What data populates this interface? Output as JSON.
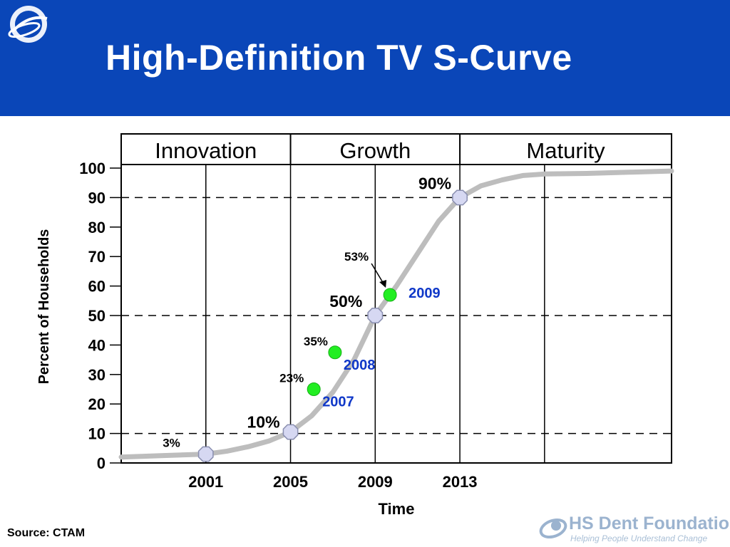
{
  "slide": {
    "title": "High-Definition TV S-Curve",
    "source": "Source: CTAM",
    "logo_text": "HS Dent Foundation",
    "logo_tagline": "Helping People Understand Change",
    "colors": {
      "header_bg": "#0a46b8",
      "curve": "#bdbdbd",
      "marker_highlight": "#22ee22",
      "marker_milestone": "#d6d8f2",
      "year_label": "#1038c8"
    }
  },
  "chart_data": {
    "type": "line",
    "title": "",
    "xlabel": "Time",
    "ylabel": "Percent of Households",
    "ylim": [
      0,
      100
    ],
    "xlim": [
      1997,
      2023
    ],
    "yticks": [
      0,
      10,
      20,
      30,
      40,
      50,
      60,
      70,
      80,
      90,
      100
    ],
    "xticks": [
      "2001",
      "2005",
      "2009",
      "2013"
    ],
    "grid": "dashed horizontal lines at 10, 50 and 90; vertical lines at each year tick and 2017",
    "phases": [
      {
        "label": "Innovation",
        "from": 1997,
        "to": 2005
      },
      {
        "label": "Growth",
        "from": 2005,
        "to": 2013
      },
      {
        "label": "Maturity",
        "from": 2013,
        "to": 2023
      }
    ],
    "series": [
      {
        "x": [
          1997,
          1999,
          2001,
          2002,
          2003,
          2004,
          2005,
          2006,
          2007,
          2008,
          2009,
          2010,
          2011,
          2012,
          2013,
          2014,
          2015,
          2016,
          2017,
          2019,
          2021,
          2023
        ],
        "values": [
          2,
          2.5,
          3,
          4,
          5.5,
          7.5,
          10.5,
          16,
          24,
          35,
          50,
          60,
          71,
          82,
          90,
          94,
          96,
          97.5,
          98,
          98.2,
          98.6,
          99
        ]
      }
    ],
    "milestones": [
      {
        "x": 2001,
        "y": 3,
        "label": "3%"
      },
      {
        "x": 2005,
        "y": 10.5,
        "label": "10%"
      },
      {
        "x": 2009,
        "y": 50,
        "label": "50%"
      },
      {
        "x": 2013,
        "y": 90,
        "label": "90%"
      }
    ],
    "highlights": [
      {
        "x": 2006.1,
        "y": 25,
        "label": "23%",
        "year": "2007"
      },
      {
        "x": 2007.1,
        "y": 37.5,
        "label": "35%",
        "year": "2008"
      },
      {
        "x": 2009.7,
        "y": 57,
        "label": "53%",
        "year": "2009"
      }
    ]
  }
}
